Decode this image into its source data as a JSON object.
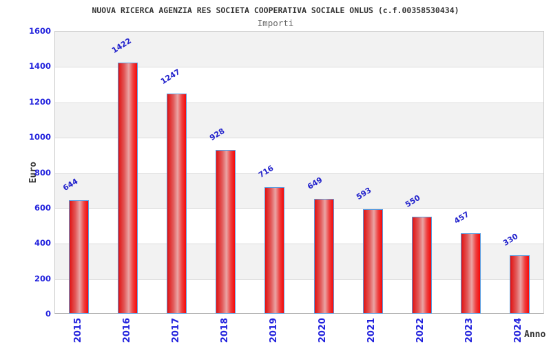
{
  "header": {
    "title": "NUOVA RICERCA AGENZIA RES SOCIETA COOPERATIVA SOCIALE ONLUS (c.f.00358530434)",
    "subtitle": "Importi"
  },
  "chart_data": {
    "type": "bar",
    "title": "NUOVA RICERCA AGENZIA RES SOCIETA COOPERATIVA SOCIALE ONLUS (c.f.00358530434)",
    "subtitle": "Importi",
    "categories": [
      "2015",
      "2016",
      "2017",
      "2018",
      "2019",
      "2020",
      "2021",
      "2022",
      "2023",
      "2024"
    ],
    "values": [
      644,
      1422,
      1247,
      928,
      716,
      649,
      593,
      550,
      457,
      330
    ],
    "bar_value_labels": [
      "644",
      "1422",
      "1247",
      "928",
      "716",
      "649",
      "593",
      "550",
      "457",
      "330"
    ],
    "xlabel": "Anno",
    "ylabel": "Euro",
    "ylim": [
      0,
      1600
    ],
    "ytick_interval": 200,
    "yticks": [
      "0",
      "200",
      "400",
      "600",
      "800",
      "1000",
      "1200",
      "1400",
      "1600"
    ],
    "grid": "horizontal alternating bands every 200, gray/white, light gridlines",
    "legend_position": "none",
    "bar_orientation": "vertical",
    "value_label_rotation_deg": -32,
    "x_tick_rotation_deg": -90
  },
  "colors": {
    "bar_gradient_left": "#e01212",
    "bar_gradient_center": "#eaa4a4",
    "bar_gradient_right": "#f60808",
    "bar_border": "#5b9de0",
    "tick_label_blue": "#2222dd",
    "value_label_blue": "#2222cc",
    "band_gray": "#f2f2f2",
    "band_white": "#ffffff",
    "grid_line": "#dcdcdc",
    "plot_border": "#cccccc",
    "axis_line": "#aaaaaa",
    "title_color": "#333333",
    "subtitle_color": "#666666",
    "background": "#ffffff"
  }
}
